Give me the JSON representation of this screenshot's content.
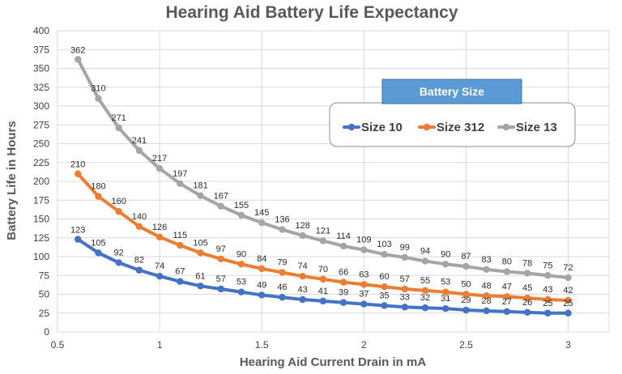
{
  "chart_data": {
    "type": "line",
    "title": "Hearing Aid Battery Life Expectancy",
    "xlabel": "Hearing Aid Current Drain in mA",
    "ylabel": "Battery Life in Hours",
    "xlim": [
      0.5,
      3.2
    ],
    "ylim": [
      0,
      400
    ],
    "x_ticks": [
      0.5,
      1,
      1.5,
      2,
      2.5,
      3
    ],
    "x_tick_labels": [
      "0.5",
      "1",
      "1.5",
      "2",
      "2.5",
      "3"
    ],
    "y_ticks": [
      0,
      25,
      50,
      75,
      100,
      125,
      150,
      175,
      200,
      225,
      250,
      275,
      300,
      325,
      350,
      375,
      400
    ],
    "grid": true,
    "legend": {
      "title": "Battery Size",
      "position": "top-right"
    },
    "x": [
      0.6,
      0.7,
      0.8,
      0.9,
      1.0,
      1.1,
      1.2,
      1.3,
      1.4,
      1.5,
      1.6,
      1.7,
      1.8,
      1.9,
      2.0,
      2.1,
      2.2,
      2.3,
      2.4,
      2.5,
      2.6,
      2.7,
      2.8,
      2.9,
      3.0
    ],
    "series": [
      {
        "name": "Size 10",
        "color": "#4472c4",
        "values": [
          123,
          105,
          92,
          82,
          74,
          67,
          61,
          57,
          53,
          49,
          46,
          43,
          41,
          39,
          37,
          35,
          33,
          32,
          31,
          29,
          28,
          27,
          26,
          25,
          25
        ]
      },
      {
        "name": "Size 312",
        "color": "#ed7d31",
        "values": [
          210,
          180,
          160,
          140,
          126,
          115,
          105,
          97,
          90,
          84,
          79,
          74,
          70,
          66,
          63,
          60,
          57,
          55,
          53,
          50,
          48,
          47,
          45,
          43,
          42
        ]
      },
      {
        "name": "Size 13",
        "color": "#a5a5a5",
        "values": [
          362,
          310,
          271,
          241,
          217,
          197,
          181,
          167,
          155,
          145,
          136,
          128,
          121,
          114,
          109,
          103,
          99,
          94,
          90,
          87,
          83,
          80,
          78,
          75,
          72
        ]
      }
    ]
  }
}
